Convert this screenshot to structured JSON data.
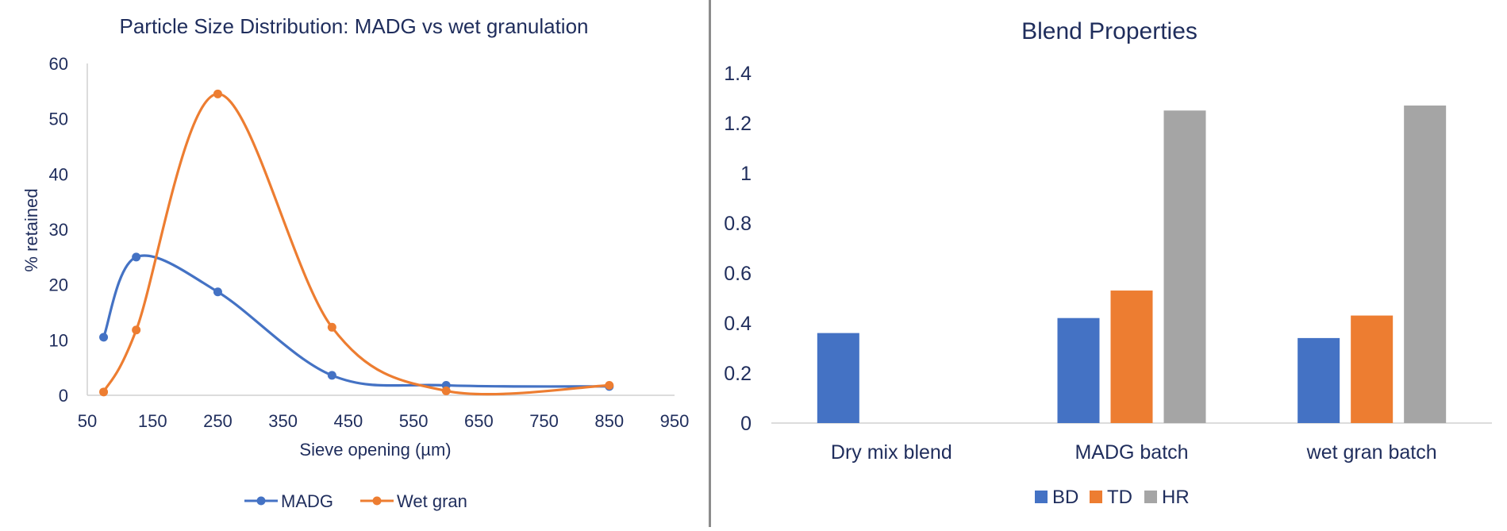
{
  "chart_data": [
    {
      "type": "line",
      "smooth": true,
      "title": "Particle Size Distribution: MADG vs wet granulation",
      "xlabel": "Sieve opening (µm)",
      "ylabel": "% retained",
      "xlim": [
        50,
        950
      ],
      "ylim": [
        0,
        60
      ],
      "xticks": [
        "50",
        "150",
        "250",
        "350",
        "450",
        "550",
        "650",
        "750",
        "850",
        "950"
      ],
      "yticks": [
        "0",
        "10",
        "20",
        "30",
        "40",
        "50",
        "60"
      ],
      "grid": false,
      "legend": "bottom",
      "series": [
        {
          "name": "MADG",
          "color": "#4472c4",
          "points": [
            [
              75,
              10.5
            ],
            [
              125,
              25
            ],
            [
              250,
              18.7
            ],
            [
              425,
              3.6
            ],
            [
              600,
              1.8
            ],
            [
              850,
              1.6
            ]
          ]
        },
        {
          "name": "Wet gran",
          "color": "#ed7d31",
          "points": [
            [
              75,
              0.6
            ],
            [
              125,
              11.8
            ],
            [
              250,
              54.5
            ],
            [
              425,
              12.3
            ],
            [
              600,
              0.8
            ],
            [
              850,
              1.8
            ]
          ]
        }
      ]
    },
    {
      "type": "bar",
      "title": "Blend Properties",
      "categories": [
        "Dry mix blend",
        "MADG batch",
        "wet gran batch"
      ],
      "ylim": [
        0,
        1.4
      ],
      "yticks": [
        "0",
        "0.2",
        "0.4",
        "0.6",
        "0.8",
        "1",
        "1.2",
        "1.4"
      ],
      "grid": false,
      "legend": "bottom",
      "series": [
        {
          "name": "BD",
          "color": "#4472c4",
          "values": [
            0.36,
            0.42,
            0.34
          ]
        },
        {
          "name": "TD",
          "color": "#ed7d31",
          "values": [
            null,
            0.53,
            0.43
          ]
        },
        {
          "name": "HR",
          "color": "#a5a5a5",
          "values": [
            null,
            1.25,
            1.27
          ]
        }
      ]
    }
  ]
}
